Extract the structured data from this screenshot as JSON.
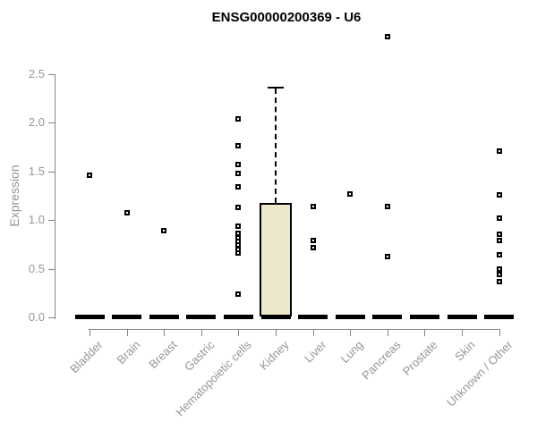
{
  "colors": {
    "box_fill": "#ede8cc",
    "box_border": "#000000",
    "axis": "#858585",
    "tick_label": "#969696",
    "title": "#000000",
    "point": "#000000",
    "background": "#ffffff"
  },
  "chart_data": {
    "type": "boxplot",
    "title": "ENSG00000200369 - U6",
    "ylabel": "Expression",
    "xlabel": "",
    "ylim": [
      0,
      2.9
    ],
    "yticks": [
      "0.0",
      "0.5",
      "1.0",
      "1.5",
      "2.0",
      "2.5"
    ],
    "grid": "off",
    "legend": "none",
    "categories": [
      "Bladder",
      "Brain",
      "Breast",
      "Gastric",
      "Hematopoietic cells",
      "Kidney",
      "Liver",
      "Lung",
      "Pancreas",
      "Prostate",
      "Skin",
      "Unknown / Other"
    ],
    "boxes": [
      {
        "category": "Bladder",
        "median": 0,
        "q1": 0,
        "q3": 0,
        "whisker_low": 0,
        "whisker_high": 0,
        "outliers": [
          1.46
        ]
      },
      {
        "category": "Brain",
        "median": 0,
        "q1": 0,
        "q3": 0,
        "whisker_low": 0,
        "whisker_high": 0,
        "outliers": [
          1.07
        ]
      },
      {
        "category": "Breast",
        "median": 0,
        "q1": 0,
        "q3": 0,
        "whisker_low": 0,
        "whisker_high": 0,
        "outliers": [
          0.89
        ]
      },
      {
        "category": "Gastric",
        "median": 0,
        "q1": 0,
        "q3": 0,
        "whisker_low": 0,
        "whisker_high": 0,
        "outliers": []
      },
      {
        "category": "Hematopoietic cells",
        "median": 0,
        "q1": 0,
        "q3": 0,
        "whisker_low": 0,
        "whisker_high": 0,
        "outliers": [
          2.04,
          1.76,
          1.57,
          1.48,
          1.34,
          1.13,
          0.94,
          0.86,
          0.82,
          0.78,
          0.74,
          0.7,
          0.66,
          0.24
        ]
      },
      {
        "category": "Kidney",
        "median": 0,
        "q1": 0,
        "q3": 1.17,
        "whisker_low": 0,
        "whisker_high": 2.35,
        "outliers": []
      },
      {
        "category": "Liver",
        "median": 0,
        "q1": 0,
        "q3": 0,
        "whisker_low": 0,
        "whisker_high": 0,
        "outliers": [
          1.14,
          0.79,
          0.72
        ]
      },
      {
        "category": "Lung",
        "median": 0,
        "q1": 0,
        "q3": 0,
        "whisker_low": 0,
        "whisker_high": 0,
        "outliers": [
          1.27
        ]
      },
      {
        "category": "Pancreas",
        "median": 0,
        "q1": 0,
        "q3": 0,
        "whisker_low": 0,
        "whisker_high": 0,
        "outliers": [
          2.88,
          1.14,
          0.62
        ]
      },
      {
        "category": "Prostate",
        "median": 0,
        "q1": 0,
        "q3": 0,
        "whisker_low": 0,
        "whisker_high": 0,
        "outliers": []
      },
      {
        "category": "Skin",
        "median": 0,
        "q1": 0,
        "q3": 0,
        "whisker_low": 0,
        "whisker_high": 0,
        "outliers": []
      },
      {
        "category": "Unknown / Other",
        "median": 0,
        "q1": 0,
        "q3": 0,
        "whisker_low": 0,
        "whisker_high": 0,
        "outliers": [
          1.71,
          1.26,
          1.02,
          0.85,
          0.79,
          0.64,
          0.5,
          0.44,
          0.37
        ]
      }
    ]
  }
}
